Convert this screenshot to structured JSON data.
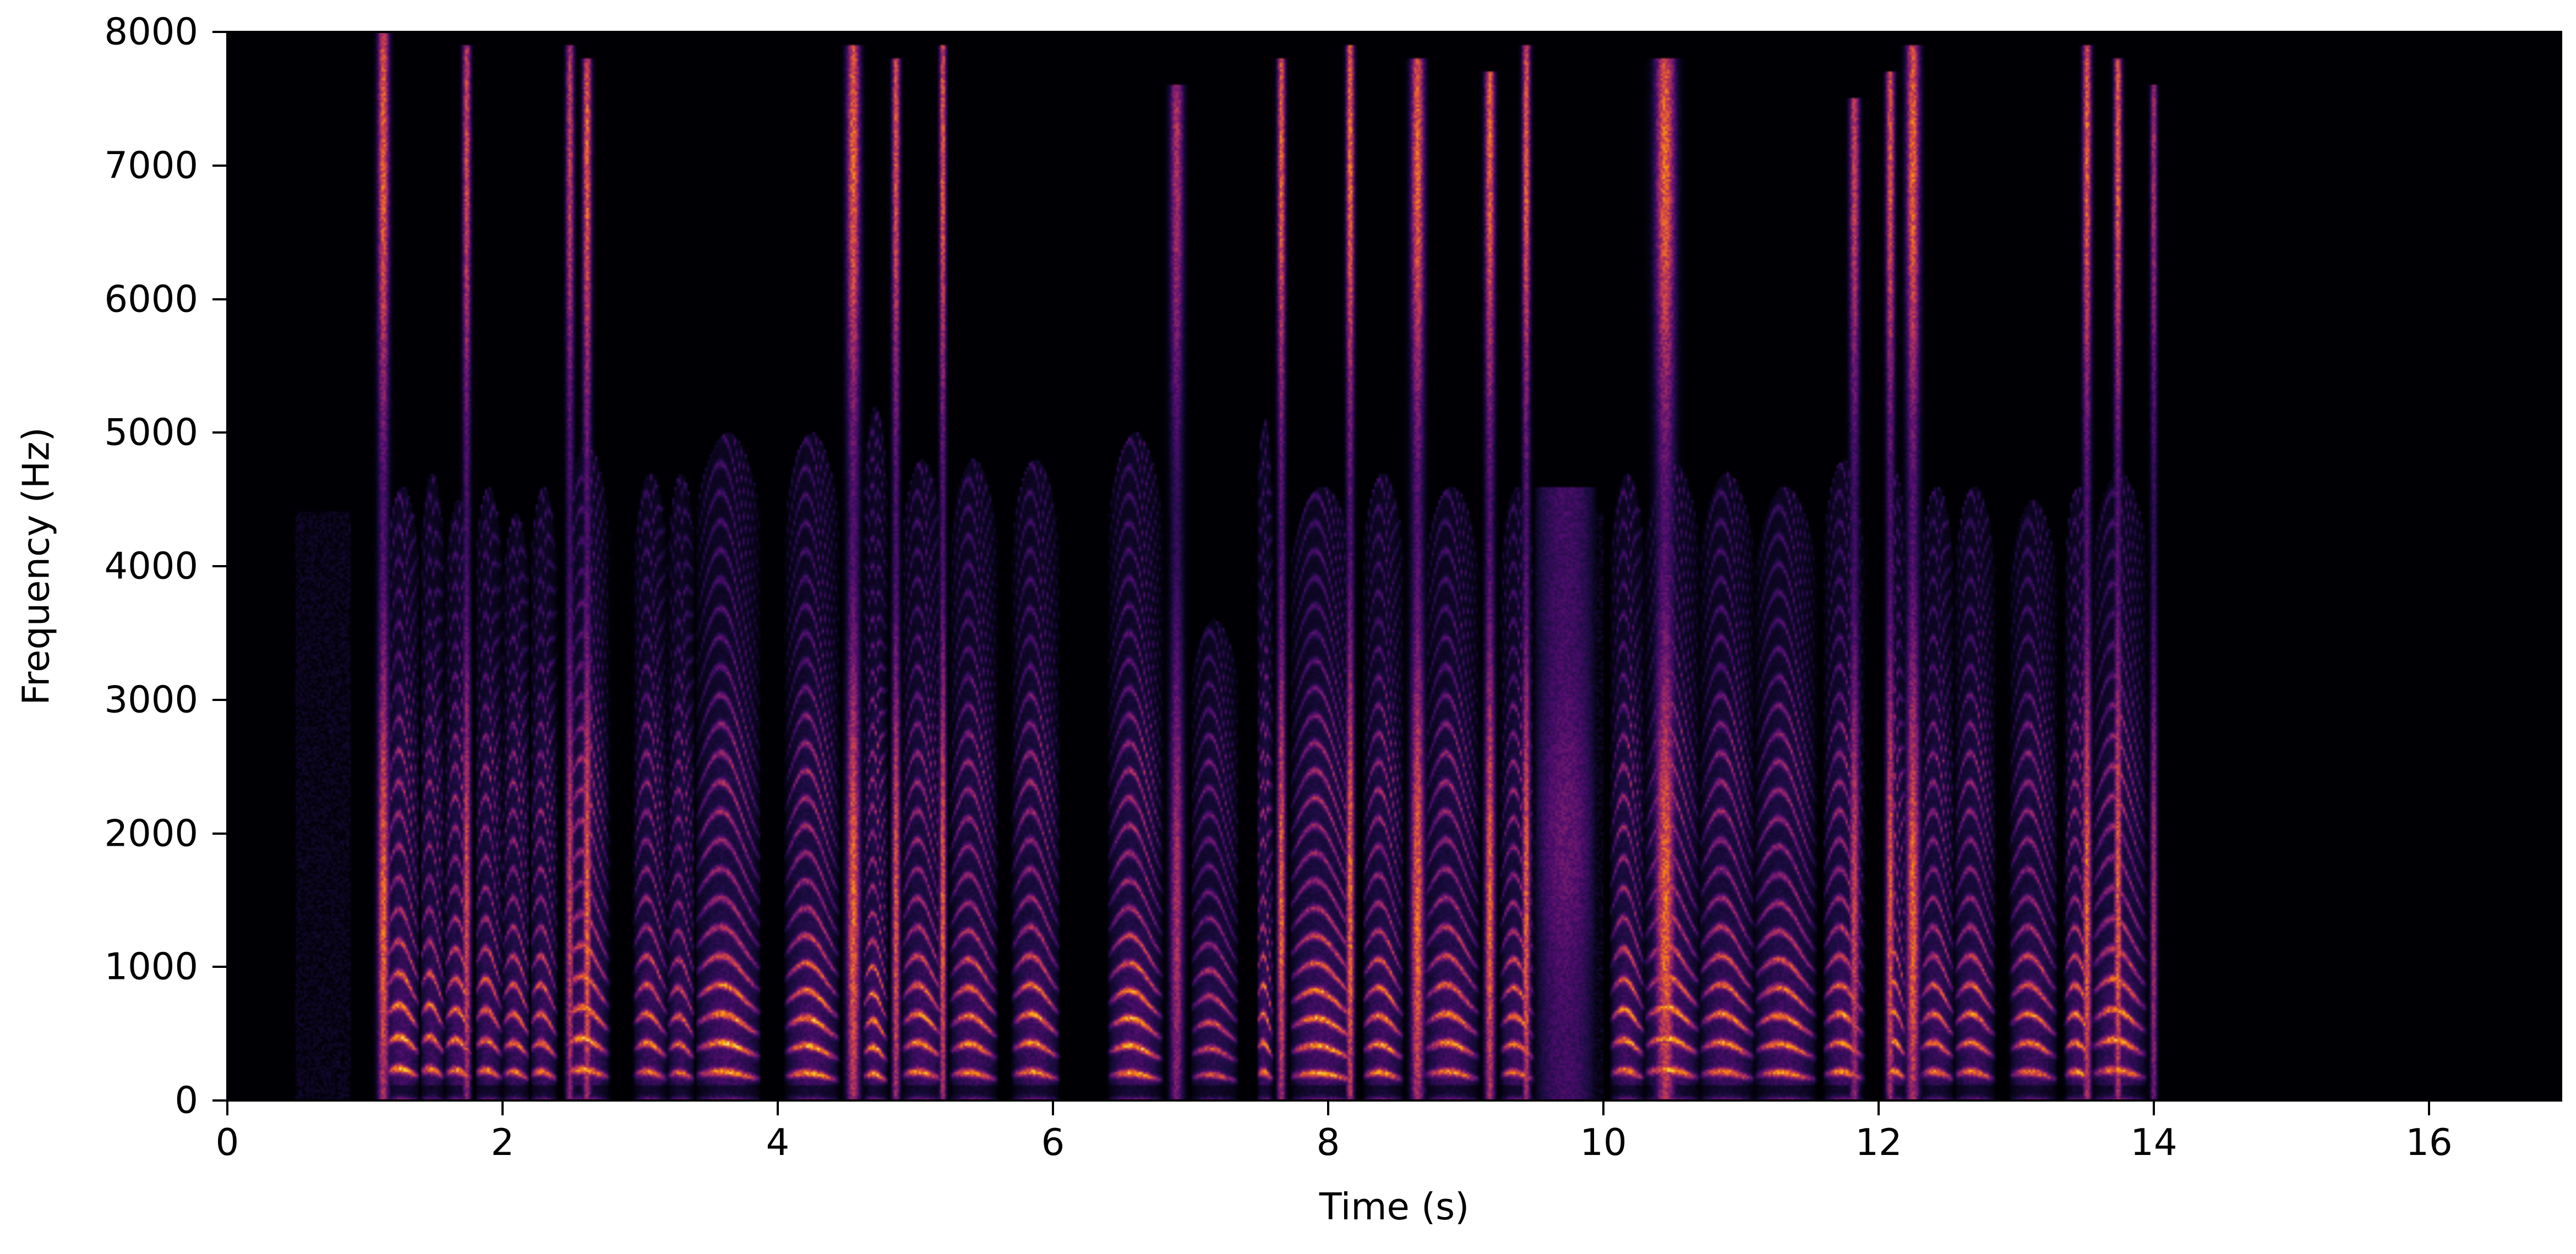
{
  "chart_data": {
    "type": "heatmap",
    "subtype": "spectrogram",
    "title": "",
    "xlabel": "Time (s)",
    "ylabel": "Frequency (Hz)",
    "xlim": [
      0,
      16.96
    ],
    "ylim": [
      0,
      8000
    ],
    "x_ticks": [
      0,
      2,
      4,
      6,
      8,
      10,
      12,
      14,
      16
    ],
    "x_tick_labels": [
      "0",
      "2",
      "4",
      "6",
      "8",
      "10",
      "12",
      "14",
      "16"
    ],
    "y_ticks": [
      0,
      1000,
      2000,
      3000,
      4000,
      5000,
      6000,
      7000,
      8000
    ],
    "y_tick_labels": [
      "0",
      "1000",
      "2000",
      "3000",
      "4000",
      "5000",
      "6000",
      "7000",
      "8000"
    ],
    "colormap": "inferno",
    "colormap_stops": [
      "#000004",
      "#1b0c41",
      "#4a0c6b",
      "#781c6d",
      "#a52c60",
      "#cf4446",
      "#ed6925",
      "#fb9b06",
      "#f7d13d",
      "#fcffa4"
    ],
    "grid": false,
    "legend": null,
    "colorbar": false,
    "speech_region_s": [
      1.05,
      14.05
    ],
    "silence_regions_s": [
      [
        0,
        1.05
      ],
      [
        14.05,
        16.96
      ]
    ],
    "faint_noise_regions_s": [
      [
        0.5,
        0.9
      ],
      [
        9.5,
        10.0
      ]
    ],
    "segments": [
      {
        "start": 1.05,
        "end": 1.22,
        "type": "fricative",
        "fmax": 8000,
        "energy": 0.85
      },
      {
        "start": 1.15,
        "end": 1.4,
        "type": "voiced",
        "fmax": 4600,
        "f0": 220,
        "energy": 0.9
      },
      {
        "start": 1.4,
        "end": 1.58,
        "type": "voiced",
        "fmax": 4700,
        "f0": 220,
        "energy": 0.8
      },
      {
        "start": 1.58,
        "end": 1.78,
        "type": "voiced",
        "fmax": 4500,
        "f0": 210,
        "energy": 0.85
      },
      {
        "start": 1.68,
        "end": 1.8,
        "type": "fricative",
        "fmax": 7900,
        "energy": 0.75
      },
      {
        "start": 1.8,
        "end": 2.0,
        "type": "voiced",
        "fmax": 4600,
        "f0": 210,
        "energy": 0.8
      },
      {
        "start": 2.0,
        "end": 2.2,
        "type": "voiced",
        "fmax": 4400,
        "f0": 200,
        "energy": 0.8
      },
      {
        "start": 2.2,
        "end": 2.4,
        "type": "voiced",
        "fmax": 4600,
        "f0": 200,
        "energy": 0.8
      },
      {
        "start": 2.43,
        "end": 2.55,
        "type": "fricative",
        "fmax": 7900,
        "energy": 0.7
      },
      {
        "start": 2.45,
        "end": 2.78,
        "type": "voiced",
        "fmax": 4900,
        "f0": 215,
        "energy": 0.9
      },
      {
        "start": 2.55,
        "end": 2.68,
        "type": "fricative",
        "fmax": 7800,
        "energy": 0.85
      },
      {
        "start": 2.95,
        "end": 3.2,
        "type": "voiced",
        "fmax": 4700,
        "f0": 200,
        "energy": 0.8
      },
      {
        "start": 3.2,
        "end": 3.4,
        "type": "voiced",
        "fmax": 4700,
        "f0": 195,
        "energy": 0.75
      },
      {
        "start": 3.4,
        "end": 3.88,
        "type": "voiced",
        "fmax": 5000,
        "f0": 200,
        "energy": 0.9
      },
      {
        "start": 4.05,
        "end": 4.45,
        "type": "voiced",
        "fmax": 5000,
        "f0": 190,
        "energy": 0.9
      },
      {
        "start": 4.45,
        "end": 4.65,
        "type": "fricative",
        "fmax": 7900,
        "energy": 0.85
      },
      {
        "start": 4.62,
        "end": 4.8,
        "type": "voiced",
        "fmax": 5200,
        "f0": 185,
        "energy": 0.9
      },
      {
        "start": 4.8,
        "end": 4.92,
        "type": "fricative",
        "fmax": 7800,
        "energy": 0.8
      },
      {
        "start": 4.9,
        "end": 5.2,
        "type": "voiced",
        "fmax": 4800,
        "f0": 200,
        "energy": 0.85
      },
      {
        "start": 5.15,
        "end": 5.25,
        "type": "fricative",
        "fmax": 7900,
        "energy": 0.85
      },
      {
        "start": 5.25,
        "end": 5.6,
        "type": "voiced",
        "fmax": 4800,
        "f0": 195,
        "energy": 0.85
      },
      {
        "start": 5.7,
        "end": 6.05,
        "type": "voiced",
        "fmax": 4800,
        "f0": 200,
        "energy": 0.85
      },
      {
        "start": 6.4,
        "end": 6.8,
        "type": "voiced",
        "fmax": 5000,
        "f0": 190,
        "energy": 0.9
      },
      {
        "start": 6.8,
        "end": 7.0,
        "type": "fricative",
        "fmax": 7600,
        "energy": 0.6
      },
      {
        "start": 7.0,
        "end": 7.35,
        "type": "voiced",
        "fmax": 3600,
        "f0": 180,
        "energy": 0.65
      },
      {
        "start": 7.48,
        "end": 7.6,
        "type": "voiced",
        "fmax": 5100,
        "f0": 200,
        "energy": 0.85
      },
      {
        "start": 7.6,
        "end": 7.72,
        "type": "fricative",
        "fmax": 7800,
        "energy": 0.85
      },
      {
        "start": 7.72,
        "end": 8.2,
        "type": "voiced",
        "fmax": 4600,
        "f0": 190,
        "energy": 0.9
      },
      {
        "start": 8.1,
        "end": 8.22,
        "type": "fricative",
        "fmax": 7900,
        "energy": 0.9
      },
      {
        "start": 8.25,
        "end": 8.55,
        "type": "voiced",
        "fmax": 4700,
        "f0": 195,
        "energy": 0.85
      },
      {
        "start": 8.55,
        "end": 8.75,
        "type": "fricative",
        "fmax": 7800,
        "energy": 0.85
      },
      {
        "start": 8.7,
        "end": 9.1,
        "type": "voiced",
        "fmax": 4600,
        "f0": 200,
        "energy": 0.85
      },
      {
        "start": 9.1,
        "end": 9.25,
        "type": "fricative",
        "fmax": 7700,
        "energy": 0.85
      },
      {
        "start": 9.25,
        "end": 9.5,
        "type": "voiced",
        "fmax": 4600,
        "f0": 195,
        "energy": 0.8
      },
      {
        "start": 9.38,
        "end": 9.5,
        "type": "fricative",
        "fmax": 7900,
        "energy": 0.85
      },
      {
        "start": 9.5,
        "end": 9.95,
        "type": "noise",
        "fmax": 4600,
        "energy": 0.3
      },
      {
        "start": 10.05,
        "end": 10.3,
        "type": "voiced",
        "fmax": 4700,
        "f0": 210,
        "energy": 0.85
      },
      {
        "start": 10.3,
        "end": 10.6,
        "type": "fricative",
        "fmax": 7800,
        "energy": 0.85
      },
      {
        "start": 10.3,
        "end": 10.7,
        "type": "voiced",
        "fmax": 4800,
        "f0": 215,
        "energy": 0.9
      },
      {
        "start": 10.7,
        "end": 11.1,
        "type": "voiced",
        "fmax": 4700,
        "f0": 200,
        "energy": 0.85
      },
      {
        "start": 11.1,
        "end": 11.55,
        "type": "voiced",
        "fmax": 4600,
        "f0": 195,
        "energy": 0.85
      },
      {
        "start": 11.6,
        "end": 11.9,
        "type": "voiced",
        "fmax": 4800,
        "f0": 200,
        "energy": 0.85
      },
      {
        "start": 11.75,
        "end": 11.9,
        "type": "fricative",
        "fmax": 7500,
        "energy": 0.7
      },
      {
        "start": 12.02,
        "end": 12.15,
        "type": "fricative",
        "fmax": 7700,
        "energy": 0.8
      },
      {
        "start": 12.05,
        "end": 12.2,
        "type": "voiced",
        "fmax": 4700,
        "f0": 205,
        "energy": 0.85
      },
      {
        "start": 12.15,
        "end": 12.35,
        "type": "fricative",
        "fmax": 7900,
        "energy": 0.85
      },
      {
        "start": 12.3,
        "end": 12.55,
        "type": "voiced",
        "fmax": 4600,
        "f0": 200,
        "energy": 0.8
      },
      {
        "start": 12.55,
        "end": 12.85,
        "type": "voiced",
        "fmax": 4600,
        "f0": 200,
        "energy": 0.8
      },
      {
        "start": 12.95,
        "end": 13.3,
        "type": "voiced",
        "fmax": 4500,
        "f0": 200,
        "energy": 0.8
      },
      {
        "start": 13.35,
        "end": 13.55,
        "type": "voiced",
        "fmax": 4600,
        "f0": 200,
        "energy": 0.85
      },
      {
        "start": 13.45,
        "end": 13.58,
        "type": "fricative",
        "fmax": 7900,
        "energy": 0.85
      },
      {
        "start": 13.55,
        "end": 13.95,
        "type": "voiced",
        "fmax": 4700,
        "f0": 210,
        "energy": 0.85
      },
      {
        "start": 13.68,
        "end": 13.8,
        "type": "fricative",
        "fmax": 7800,
        "energy": 0.85
      },
      {
        "start": 13.95,
        "end": 14.05,
        "type": "fricative",
        "fmax": 7600,
        "energy": 0.6
      }
    ]
  },
  "figure": {
    "axes": {
      "xlabel": "Time (s)",
      "ylabel": "Frequency (Hz)"
    }
  }
}
